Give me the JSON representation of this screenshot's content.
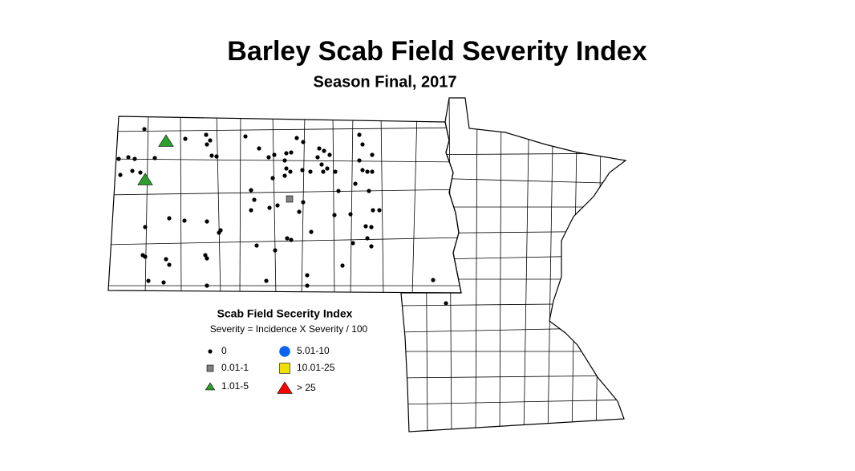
{
  "title": "Barley Scab Field Severity Index",
  "subtitle": "Season Final, 2017",
  "legend": {
    "title": "Scab Field Secerity Index",
    "subtitle": "Severity = Incidence X Severity / 100",
    "items": [
      {
        "label": "0",
        "symbol": "dot",
        "color": "#000000"
      },
      {
        "label": "0.01-1",
        "symbol": "square",
        "color": "#808080"
      },
      {
        "label": "1.01-5",
        "symbol": "triangle",
        "color": "#2e9e2e"
      },
      {
        "label": "5.01-10",
        "symbol": "circle",
        "color": "#0a64f0"
      },
      {
        "label": "10.01-25",
        "symbol": "square",
        "color": "#f0e000"
      },
      {
        "label": "> 25",
        "symbol": "triangle",
        "color": "#ff0000"
      }
    ]
  }
}
